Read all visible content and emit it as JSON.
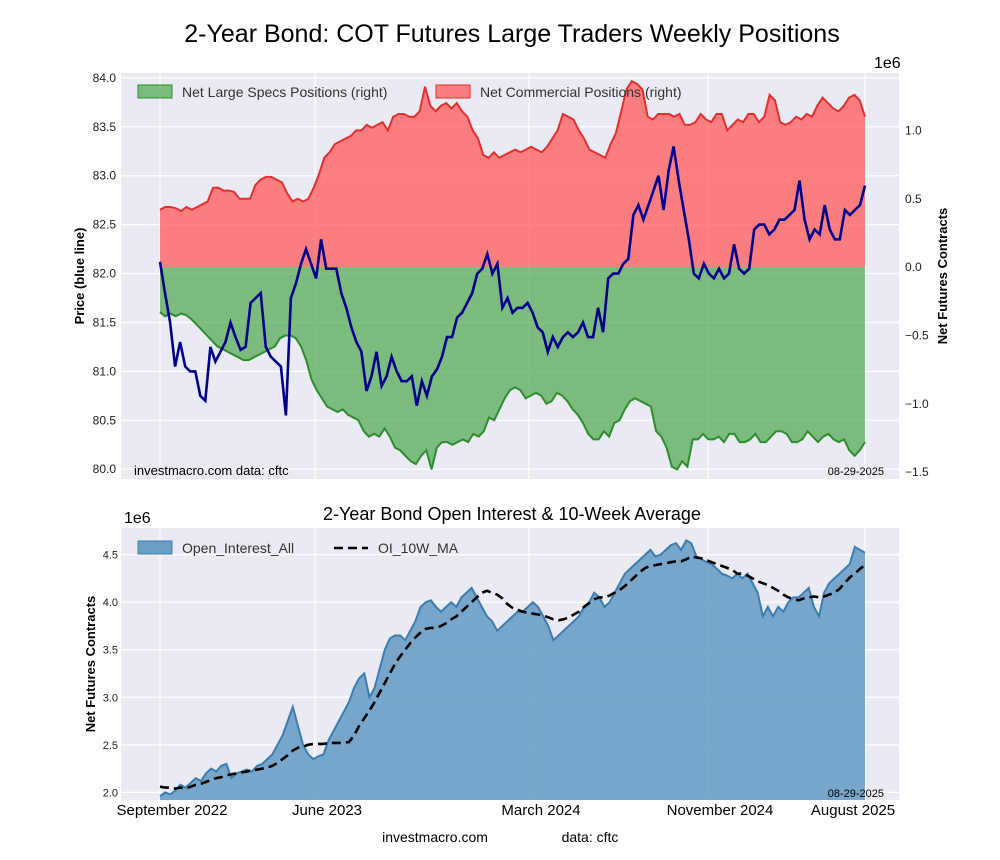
{
  "chart_data": [
    {
      "type": "line+area",
      "title": "2-Year Bond: COT Futures Large Traders Weekly Positions",
      "ylabel_left": "Price (blue line)",
      "ylabel_right": "Net Futures Contracts",
      "right_multiplier": "1e6",
      "left_ticks": [
        "80.0",
        "80.5",
        "81.0",
        "81.5",
        "82.0",
        "82.5",
        "83.0",
        "83.5",
        "84.0"
      ],
      "right_ticks": [
        "−1.5",
        "−1.0",
        "−0.5",
        "0.0",
        "0.5",
        "1.0"
      ],
      "ylim_left": [
        79.9,
        84.05
      ],
      "ylim_right": [
        -1.55,
        1.42
      ],
      "grid": true,
      "legend_position": "top-left",
      "source_note": "investmacro.com    data: cftc",
      "date_note": "08-29-2025",
      "colors": {
        "price_line": "#00008b",
        "specs_fill": "#4ca64c",
        "specs_line": "#2e8b2e",
        "comm_fill": "#ff5a5a",
        "comm_line": "#e03030"
      },
      "series": [
        {
          "name": "Net Large Specs Positions (right)",
          "axis": "right",
          "values": [
            -0.33,
            -0.36,
            -0.34,
            -0.36,
            -0.34,
            -0.35,
            -0.38,
            -0.42,
            -0.46,
            -0.5,
            -0.54,
            -0.58,
            -0.6,
            -0.62,
            -0.64,
            -0.66,
            -0.68,
            -0.68,
            -0.66,
            -0.64,
            -0.62,
            -0.6,
            -0.58,
            -0.52,
            -0.5,
            -0.5,
            -0.52,
            -0.58,
            -0.68,
            -0.82,
            -0.9,
            -0.96,
            -1.02,
            -1.04,
            -1.06,
            -1.04,
            -1.08,
            -1.1,
            -1.12,
            -1.2,
            -1.24,
            -1.22,
            -1.24,
            -1.18,
            -1.24,
            -1.32,
            -1.34,
            -1.38,
            -1.42,
            -1.44,
            -1.38,
            -1.34,
            -1.48,
            -1.32,
            -1.28,
            -1.28,
            -1.3,
            -1.28,
            -1.26,
            -1.28,
            -1.22,
            -1.24,
            -1.2,
            -1.1,
            -1.12,
            -1.04,
            -0.96,
            -0.9,
            -0.88,
            -0.9,
            -0.96,
            -0.94,
            -0.92,
            -0.94,
            -1.0,
            -0.98,
            -0.92,
            -0.94,
            -0.98,
            -1.04,
            -1.08,
            -1.14,
            -1.22,
            -1.26,
            -1.26,
            -1.2,
            -1.24,
            -1.14,
            -1.12,
            -1.04,
            -0.98,
            -0.96,
            -0.98,
            -1.0,
            -1.02,
            -1.2,
            -1.24,
            -1.32,
            -1.46,
            -1.48,
            -1.42,
            -1.46,
            -1.26,
            -1.26,
            -1.22,
            -1.26,
            -1.26,
            -1.24,
            -1.28,
            -1.22,
            -1.22,
            -1.28,
            -1.28,
            -1.26,
            -1.22,
            -1.28,
            -1.28,
            -1.24,
            -1.2,
            -1.2,
            -1.22,
            -1.28,
            -1.28,
            -1.26,
            -1.2,
            -1.24,
            -1.28,
            -1.24,
            -1.22,
            -1.26,
            -1.28,
            -1.26,
            -1.34,
            -1.38,
            -1.34,
            -1.28
          ]
        },
        {
          "name": "Net Commercial Positions (right)",
          "axis": "right",
          "values": [
            0.42,
            0.44,
            0.44,
            0.43,
            0.41,
            0.44,
            0.42,
            0.44,
            0.46,
            0.48,
            0.58,
            0.58,
            0.56,
            0.56,
            0.55,
            0.5,
            0.5,
            0.5,
            0.6,
            0.64,
            0.66,
            0.66,
            0.64,
            0.62,
            0.54,
            0.48,
            0.5,
            0.48,
            0.5,
            0.58,
            0.68,
            0.8,
            0.84,
            0.9,
            0.92,
            0.94,
            0.96,
            1.0,
            1.0,
            1.04,
            1.02,
            1.04,
            1.06,
            1.0,
            1.1,
            1.12,
            1.12,
            1.1,
            1.1,
            1.14,
            1.32,
            1.18,
            1.14,
            1.18,
            1.2,
            1.16,
            1.2,
            1.14,
            1.1,
            1.0,
            0.94,
            0.82,
            0.8,
            0.84,
            0.8,
            0.82,
            0.84,
            0.86,
            0.84,
            0.86,
            0.88,
            0.86,
            0.84,
            0.88,
            0.94,
            1.0,
            1.12,
            1.1,
            1.08,
            1.0,
            0.94,
            0.86,
            0.84,
            0.82,
            0.8,
            0.9,
            0.98,
            1.14,
            1.3,
            1.36,
            1.34,
            1.3,
            1.1,
            1.08,
            1.12,
            1.12,
            1.12,
            1.1,
            1.12,
            1.04,
            1.04,
            1.06,
            1.12,
            1.08,
            1.06,
            1.12,
            1.12,
            1.0,
            1.04,
            1.08,
            1.06,
            1.12,
            1.12,
            1.06,
            1.1,
            1.26,
            1.22,
            1.06,
            1.04,
            1.06,
            1.1,
            1.08,
            1.12,
            1.1,
            1.18,
            1.24,
            1.2,
            1.16,
            1.14,
            1.18,
            1.24,
            1.26,
            1.22,
            1.1
          ]
        },
        {
          "name": "Price (blue line)",
          "axis": "left",
          "values": [
            82.12,
            81.8,
            81.5,
            81.05,
            81.3,
            81.05,
            81.0,
            81.0,
            80.75,
            80.7,
            81.25,
            81.1,
            81.2,
            81.3,
            81.5,
            81.35,
            81.22,
            81.25,
            81.7,
            81.75,
            81.8,
            81.25,
            81.15,
            81.1,
            81.05,
            80.55,
            81.75,
            81.9,
            82.1,
            82.25,
            82.1,
            81.95,
            82.35,
            82.05,
            82.05,
            82.05,
            81.8,
            81.65,
            81.45,
            81.3,
            81.2,
            80.8,
            80.95,
            81.2,
            80.85,
            80.95,
            81.15,
            81.0,
            80.9,
            80.9,
            80.95,
            80.65,
            80.9,
            80.75,
            80.95,
            81.02,
            81.15,
            81.35,
            81.35,
            81.55,
            81.6,
            81.7,
            81.8,
            82.0,
            82.05,
            82.2,
            82.0,
            82.1,
            81.65,
            81.75,
            81.6,
            81.65,
            81.65,
            81.7,
            81.6,
            81.45,
            81.4,
            81.2,
            81.35,
            81.25,
            81.35,
            81.4,
            81.35,
            81.4,
            81.5,
            81.35,
            81.35,
            81.65,
            81.4,
            81.95,
            82.0,
            82.0,
            82.1,
            82.15,
            82.6,
            82.7,
            82.55,
            82.7,
            82.85,
            83.0,
            82.65,
            83.05,
            83.3,
            82.95,
            82.65,
            82.35,
            82.0,
            81.95,
            82.1,
            82.0,
            81.95,
            82.05,
            81.95,
            82.0,
            82.3,
            82.05,
            82.0,
            82.05,
            82.45,
            82.5,
            82.5,
            82.4,
            82.45,
            82.55,
            82.55,
            82.6,
            82.65,
            82.95,
            82.55,
            82.35,
            82.45,
            82.4,
            82.7,
            82.45,
            82.35,
            82.35,
            82.65,
            82.6,
            82.65,
            82.7,
            82.9
          ]
        }
      ]
    },
    {
      "type": "area+line",
      "title": "2-Year Bond Open Interest & 10-Week Average",
      "ylabel": "Net Futures Contracts",
      "y_multiplier": "1e6",
      "ylim": [
        1.92,
        4.78
      ],
      "y_ticks": [
        "2.0",
        "2.5",
        "3.0",
        "3.5",
        "4.0",
        "4.5"
      ],
      "x_ticks": [
        "September 2022",
        "June 2023",
        "March 2024",
        "November 2024",
        "August 2025"
      ],
      "grid": true,
      "legend_position": "top-left",
      "date_note": "08-29-2025",
      "colors": {
        "oi_fill": "#6a9ec5",
        "oi_line": "#3b7db0",
        "ma_line": "#000000"
      },
      "series": [
        {
          "name": "Open_Interest_All",
          "values": [
            1.96,
            2.0,
            1.98,
            2.02,
            2.08,
            2.05,
            2.1,
            2.15,
            2.12,
            2.2,
            2.25,
            2.22,
            2.28,
            2.3,
            2.15,
            2.2,
            2.22,
            2.24,
            2.22,
            2.28,
            2.3,
            2.35,
            2.4,
            2.5,
            2.6,
            2.75,
            2.9,
            2.7,
            2.5,
            2.4,
            2.35,
            2.38,
            2.4,
            2.55,
            2.65,
            2.75,
            2.85,
            2.95,
            3.1,
            3.2,
            3.25,
            3.0,
            3.1,
            3.3,
            3.5,
            3.62,
            3.65,
            3.65,
            3.6,
            3.7,
            3.8,
            3.95,
            4.0,
            4.02,
            3.95,
            3.9,
            3.95,
            4.0,
            3.95,
            4.05,
            4.1,
            4.15,
            4.05,
            3.95,
            3.85,
            3.8,
            3.7,
            3.75,
            3.8,
            3.85,
            3.9,
            3.9,
            3.95,
            4.0,
            3.95,
            3.85,
            3.75,
            3.6,
            3.65,
            3.7,
            3.75,
            3.8,
            3.85,
            3.95,
            4.0,
            4.1,
            4.05,
            3.95,
            4.0,
            4.1,
            4.2,
            4.3,
            4.35,
            4.4,
            4.45,
            4.5,
            4.55,
            4.48,
            4.5,
            4.55,
            4.6,
            4.62,
            4.55,
            4.65,
            4.62,
            4.48,
            4.45,
            4.42,
            4.4,
            4.35,
            4.3,
            4.28,
            4.25,
            4.3,
            4.25,
            4.3,
            4.2,
            4.1,
            3.85,
            3.95,
            3.85,
            3.95,
            3.9,
            4.0,
            4.05,
            4.05,
            4.1,
            4.15,
            3.95,
            3.85,
            4.1,
            4.2,
            4.25,
            4.3,
            4.35,
            4.4,
            4.58,
            4.55,
            4.52
          ]
        },
        {
          "name": "OI_10W_MA",
          "values": [
            2.06,
            2.05,
            2.05,
            2.04,
            2.05,
            2.04,
            2.06,
            2.08,
            2.09,
            2.11,
            2.13,
            2.15,
            2.16,
            2.18,
            2.19,
            2.2,
            2.21,
            2.22,
            2.23,
            2.24,
            2.25,
            2.26,
            2.28,
            2.31,
            2.35,
            2.39,
            2.44,
            2.47,
            2.48,
            2.5,
            2.51,
            2.51,
            2.51,
            2.52,
            2.52,
            2.52,
            2.52,
            2.53,
            2.6,
            2.7,
            2.78,
            2.86,
            2.95,
            3.05,
            3.15,
            3.25,
            3.35,
            3.43,
            3.5,
            3.57,
            3.63,
            3.68,
            3.72,
            3.73,
            3.73,
            3.75,
            3.78,
            3.82,
            3.85,
            3.9,
            3.95,
            4.0,
            4.05,
            4.1,
            4.12,
            4.1,
            4.08,
            4.04,
            3.98,
            3.94,
            3.92,
            3.9,
            3.89,
            3.88,
            3.87,
            3.86,
            3.84,
            3.82,
            3.81,
            3.82,
            3.84,
            3.87,
            3.9,
            3.95,
            3.99,
            4.03,
            4.05,
            4.05,
            4.07,
            4.1,
            4.13,
            4.17,
            4.22,
            4.27,
            4.32,
            4.36,
            4.38,
            4.39,
            4.4,
            4.41,
            4.42,
            4.43,
            4.43,
            4.45,
            4.48,
            4.47,
            4.46,
            4.44,
            4.42,
            4.4,
            4.38,
            4.36,
            4.34,
            4.3,
            4.3,
            4.28,
            4.25,
            4.22,
            4.2,
            4.18,
            4.15,
            4.12,
            4.08,
            4.05,
            4.03,
            4.02,
            4.04,
            4.05,
            4.06,
            4.05,
            4.06,
            4.08,
            4.1,
            4.14,
            4.2,
            4.26,
            4.3,
            4.35,
            4.39
          ]
        }
      ]
    }
  ],
  "footer": {
    "site": "investmacro.com",
    "data": "data: cftc"
  }
}
